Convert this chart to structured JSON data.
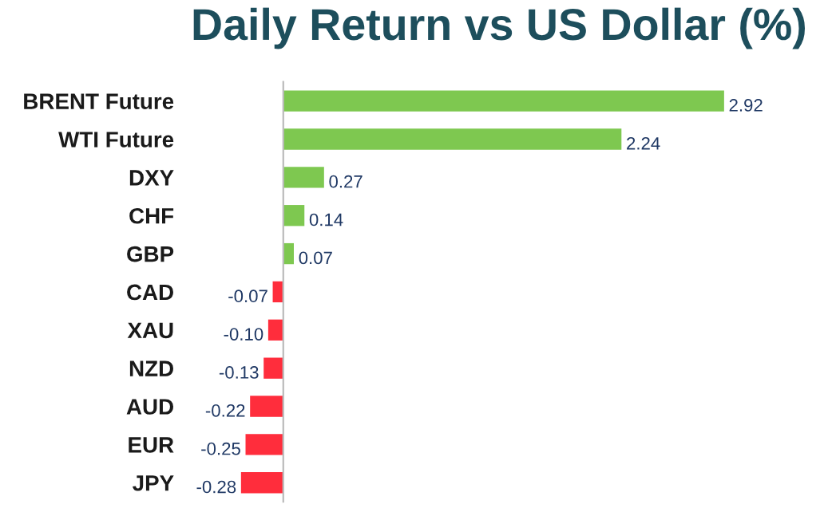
{
  "chart_data": {
    "type": "bar",
    "orientation": "horizontal",
    "title": "Daily Return vs US Dollar (%)",
    "categories": [
      "BRENT Future",
      "WTI Future",
      "DXY",
      "CHF",
      "GBP",
      "CAD",
      "XAU",
      "NZD",
      "AUD",
      "EUR",
      "JPY"
    ],
    "values": [
      2.92,
      2.24,
      0.27,
      0.14,
      0.07,
      -0.07,
      -0.1,
      -0.13,
      -0.22,
      -0.25,
      -0.28
    ],
    "colors": [
      "#7ec850",
      "#7ec850",
      "#7ec850",
      "#7ec850",
      "#7ec850",
      "#ff2d3c",
      "#ff2d3c",
      "#ff2d3c",
      "#ff2d3c",
      "#ff2d3c",
      "#ff2d3c"
    ],
    "value_labels": [
      "2.92",
      "2.24",
      "0.27",
      "0.14",
      "0.07",
      "-0.07",
      "-0.10",
      "-0.13",
      "-0.22",
      "-0.25",
      "-0.28"
    ],
    "grid": false,
    "legend": false
  }
}
